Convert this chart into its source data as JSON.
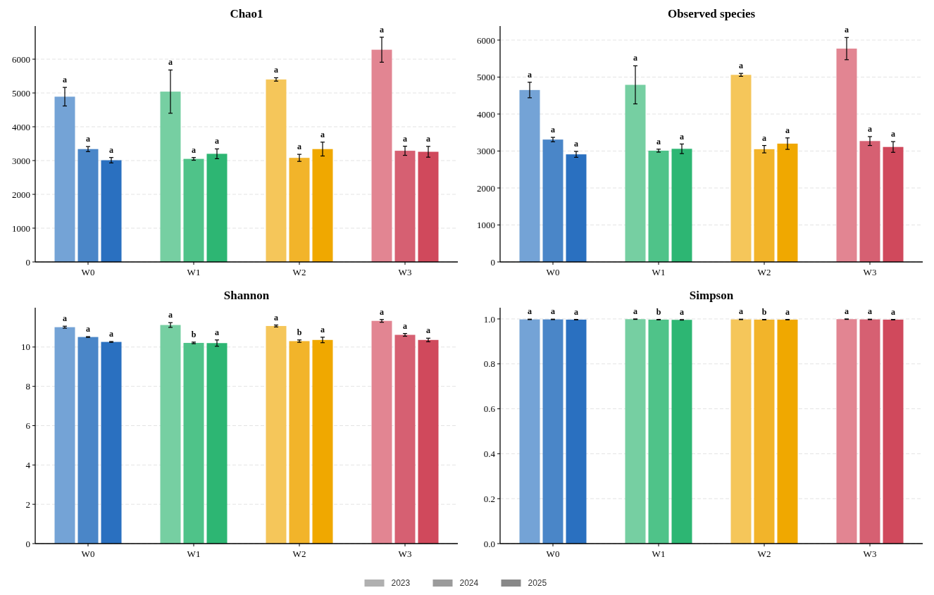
{
  "chart_data": [
    {
      "type": "bar",
      "title": "Chao1",
      "categories": [
        "W0",
        "W1",
        "W2",
        "W3"
      ],
      "ylim": [
        0,
        6980
      ],
      "yticks": [
        0,
        1000,
        2000,
        3000,
        4000,
        5000,
        6000
      ],
      "grid": "y",
      "legend": "bottom",
      "series": [
        {
          "name": "2023",
          "color": "#b0b0b0",
          "colors": [
            "#74a3d6",
            "#76cfa2",
            "#f5c65a",
            "#e28592"
          ],
          "values": [
            4890,
            5040,
            5400,
            6280
          ],
          "errors": [
            275,
            640,
            50,
            370
          ],
          "value_labels": [
            "a",
            "a",
            "a",
            "a"
          ]
        },
        {
          "name": "2024",
          "color": "#9b9b9b",
          "colors": [
            "#4a86c8",
            "#4fc389",
            "#f2b42a",
            "#d66072"
          ],
          "values": [
            3340,
            3050,
            3080,
            3290
          ],
          "errors": [
            75,
            40,
            105,
            135
          ],
          "value_labels": [
            "a",
            "a",
            "a",
            "a"
          ]
        },
        {
          "name": "2025",
          "color": "#888888",
          "colors": [
            "#2a70c0",
            "#2db673",
            "#f0a800",
            "#d0495c"
          ],
          "values": [
            3010,
            3200,
            3340,
            3260
          ],
          "errors": [
            80,
            145,
            205,
            160
          ],
          "value_labels": [
            "a",
            "a",
            "a",
            "a"
          ]
        }
      ]
    },
    {
      "type": "bar",
      "title": "Observed species",
      "categories": [
        "W0",
        "W1",
        "W2",
        "W3"
      ],
      "ylim": [
        0,
        6380
      ],
      "yticks": [
        0,
        1000,
        2000,
        3000,
        4000,
        5000,
        6000
      ],
      "grid": "y",
      "series": [
        {
          "colors": [
            "#74a3d6",
            "#76cfa2",
            "#f5c65a",
            "#e28592"
          ],
          "values": [
            4650,
            4790,
            5060,
            5770
          ],
          "errors": [
            210,
            515,
            40,
            300
          ],
          "value_labels": [
            "a",
            "a",
            "a",
            "a"
          ]
        },
        {
          "colors": [
            "#4a86c8",
            "#4fc389",
            "#f2b42a",
            "#d66072"
          ],
          "values": [
            3310,
            3010,
            3050,
            3270
          ],
          "errors": [
            60,
            40,
            100,
            120
          ],
          "value_labels": [
            "a",
            "a",
            "a",
            "a"
          ]
        },
        {
          "colors": [
            "#2a70c0",
            "#2db673",
            "#f0a800",
            "#d0495c"
          ],
          "values": [
            2910,
            3060,
            3200,
            3110
          ],
          "errors": [
            80,
            130,
            155,
            145
          ],
          "value_labels": [
            "a",
            "a",
            "a",
            "a"
          ]
        }
      ]
    },
    {
      "type": "bar",
      "title": "Shannon",
      "categories": [
        "W0",
        "W1",
        "W2",
        "W3"
      ],
      "ylim": [
        0,
        12
      ],
      "yticks": [
        0,
        2,
        4,
        6,
        8,
        10
      ],
      "grid": "y",
      "series": [
        {
          "colors": [
            "#74a3d6",
            "#76cfa2",
            "#f5c65a",
            "#e28592"
          ],
          "values": [
            11.01,
            11.12,
            11.07,
            11.33
          ],
          "errors": [
            0.05,
            0.12,
            0.05,
            0.07
          ],
          "value_labels": [
            "a",
            "a",
            "a",
            "a"
          ]
        },
        {
          "colors": [
            "#4a86c8",
            "#4fc389",
            "#f2b42a",
            "#d66072"
          ],
          "values": [
            10.51,
            10.21,
            10.3,
            10.62
          ],
          "errors": [
            0.02,
            0.04,
            0.06,
            0.07
          ],
          "value_labels": [
            "a",
            "b",
            "b",
            "a"
          ]
        },
        {
          "colors": [
            "#2a70c0",
            "#2db673",
            "#f0a800",
            "#d0495c"
          ],
          "values": [
            10.26,
            10.2,
            10.36,
            10.36
          ],
          "errors": [
            0.02,
            0.16,
            0.14,
            0.09
          ],
          "value_labels": [
            "a",
            "a",
            "a",
            "a"
          ]
        }
      ]
    },
    {
      "type": "bar",
      "title": "Simpson",
      "categories": [
        "W0",
        "W1",
        "W2",
        "W3"
      ],
      "ylim": [
        0,
        1.05
      ],
      "yticks": [
        {
          "value": 0,
          "label": "0.0"
        },
        {
          "value": 0.2,
          "label": "0.2"
        },
        {
          "value": 0.4,
          "label": "0.4"
        },
        {
          "value": 0.6,
          "label": "0.6"
        },
        {
          "value": 0.8,
          "label": "0.8"
        },
        {
          "value": 1,
          "label": "1.0"
        }
      ],
      "grid": "y",
      "series": [
        {
          "colors": [
            "#74a3d6",
            "#76cfa2",
            "#f5c65a",
            "#e28592"
          ],
          "values": [
            0.998,
            0.999,
            0.998,
            0.999
          ],
          "errors": [
            0.001,
            0.001,
            0.001,
            0.001
          ],
          "value_labels": [
            "a",
            "a",
            "a",
            "a"
          ]
        },
        {
          "colors": [
            "#4a86c8",
            "#4fc389",
            "#f2b42a",
            "#d66072"
          ],
          "values": [
            0.998,
            0.997,
            0.997,
            0.998
          ],
          "errors": [
            0.001,
            0.001,
            0.001,
            0.001
          ],
          "value_labels": [
            "a",
            "b",
            "b",
            "a"
          ]
        },
        {
          "colors": [
            "#2a70c0",
            "#2db673",
            "#f0a800",
            "#d0495c"
          ],
          "values": [
            0.997,
            0.996,
            0.997,
            0.997
          ],
          "errors": [
            0.001,
            0.001,
            0.001,
            0.001
          ],
          "value_labels": [
            "a",
            "a",
            "a",
            "a"
          ]
        }
      ]
    }
  ]
}
